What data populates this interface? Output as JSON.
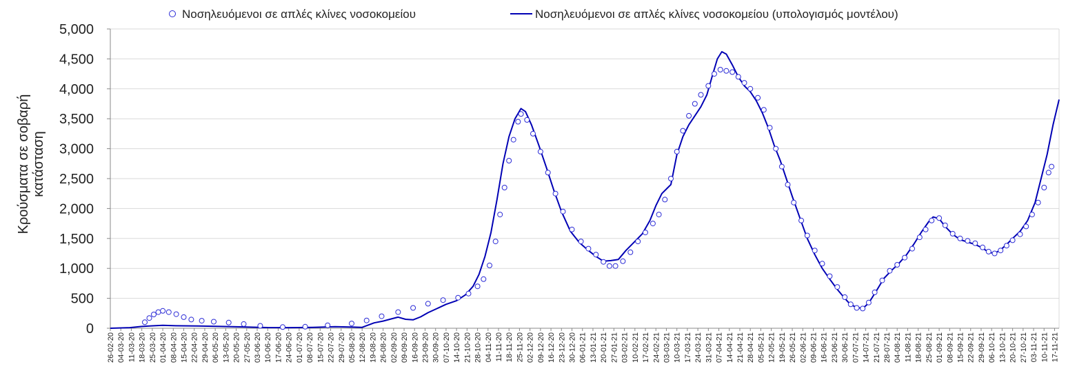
{
  "chart_data": {
    "type": "line",
    "title": "",
    "xlabel": "",
    "ylabel": "Κρούσματα σε σοβαρή κατάσταση",
    "ylabel_lines": [
      "Κρούσματα σε σοβαρή",
      "κατάσταση"
    ],
    "ylim": [
      0,
      5000
    ],
    "yticks": [
      0,
      500,
      1000,
      1500,
      2000,
      2500,
      3000,
      3500,
      4000,
      4500,
      5000
    ],
    "ytick_labels": [
      "0",
      "500",
      "1,000",
      "1,500",
      "2,000",
      "2,500",
      "3,000",
      "3,500",
      "4,000",
      "4,500",
      "5,000"
    ],
    "grid": "horizontal",
    "legend_position": "top",
    "x_range": [
      "26-02-20",
      "20-11-21"
    ],
    "x_tick_labels": [
      "26-02-20",
      "04-03-20",
      "11-03-20",
      "18-03-20",
      "25-03-20",
      "01-04-20",
      "08-04-20",
      "15-04-20",
      "22-04-20",
      "29-04-20",
      "06-05-20",
      "13-05-20",
      "20-05-20",
      "27-05-20",
      "03-06-20",
      "10-06-20",
      "17-06-20",
      "24-06-20",
      "01-07-20",
      "08-07-20",
      "15-07-20",
      "22-07-20",
      "29-07-20",
      "05-08-20",
      "12-08-20",
      "19-08-20",
      "26-08-20",
      "02-09-20",
      "09-09-20",
      "16-09-20",
      "23-09-20",
      "30-09-20",
      "07-10-20",
      "14-10-20",
      "21-10-20",
      "28-10-20",
      "04-11-20",
      "11-11-20",
      "18-11-20",
      "25-11-20",
      "02-12-20",
      "09-12-20",
      "16-12-20",
      "23-12-20",
      "30-12-20",
      "06-01-21",
      "13-01-21",
      "20-01-21",
      "27-01-21",
      "03-02-21",
      "10-02-21",
      "17-02-21",
      "24-02-21",
      "03-03-21",
      "10-03-21",
      "17-03-21",
      "24-03-21",
      "31-03-21",
      "07-04-21",
      "14-04-21",
      "21-04-21",
      "28-04-21",
      "05-05-21",
      "12-05-21",
      "19-05-21",
      "26-05-21",
      "02-06-21",
      "09-06-21",
      "16-06-21",
      "23-06-21",
      "30-06-21",
      "07-07-21",
      "14-07-21",
      "21-07-21",
      "28-07-21",
      "04-08-21",
      "11-08-21",
      "18-08-21",
      "25-08-21",
      "01-09-21",
      "08-09-21",
      "15-09-21",
      "22-09-21",
      "29-09-21",
      "06-10-21",
      "13-10-21",
      "20-10-21",
      "27-10-21",
      "03-11-21",
      "10-11-21",
      "17-11-21"
    ],
    "series": [
      {
        "name": "Νοσηλευόμενοι σε απλές κλίνες νοσοκομείου",
        "style": "markers",
        "color": "#2b2bd6",
        "marker": "open-circle",
        "points": [
          [
            "20-03-20",
            100
          ],
          [
            "23-03-20",
            170
          ],
          [
            "26-03-20",
            230
          ],
          [
            "29-03-20",
            270
          ],
          [
            "01-04-20",
            290
          ],
          [
            "05-04-20",
            270
          ],
          [
            "10-04-20",
            235
          ],
          [
            "15-04-20",
            185
          ],
          [
            "20-04-20",
            145
          ],
          [
            "27-04-20",
            125
          ],
          [
            "05-05-20",
            110
          ],
          [
            "15-05-20",
            95
          ],
          [
            "25-05-20",
            70
          ],
          [
            "05-06-20",
            40
          ],
          [
            "20-06-20",
            20
          ],
          [
            "05-07-20",
            25
          ],
          [
            "20-07-20",
            50
          ],
          [
            "05-08-20",
            80
          ],
          [
            "15-08-20",
            130
          ],
          [
            "25-08-20",
            200
          ],
          [
            "05-09-20",
            270
          ],
          [
            "15-09-20",
            340
          ],
          [
            "25-09-20",
            410
          ],
          [
            "05-10-20",
            470
          ],
          [
            "15-10-20",
            510
          ],
          [
            "22-10-20",
            580
          ],
          [
            "28-10-20",
            700
          ],
          [
            "01-11-20",
            820
          ],
          [
            "05-11-20",
            1050
          ],
          [
            "09-11-20",
            1450
          ],
          [
            "12-11-20",
            1900
          ],
          [
            "15-11-20",
            2350
          ],
          [
            "18-11-20",
            2800
          ],
          [
            "21-11-20",
            3150
          ],
          [
            "24-11-20",
            3450
          ],
          [
            "26-11-20",
            3580
          ],
          [
            "30-11-20",
            3480
          ],
          [
            "04-12-20",
            3250
          ],
          [
            "09-12-20",
            2950
          ],
          [
            "14-12-20",
            2600
          ],
          [
            "19-12-20",
            2250
          ],
          [
            "24-12-20",
            1950
          ],
          [
            "30-12-20",
            1650
          ],
          [
            "05-01-21",
            1450
          ],
          [
            "10-01-21",
            1330
          ],
          [
            "15-01-21",
            1230
          ],
          [
            "20-01-21",
            1110
          ],
          [
            "24-01-21",
            1040
          ],
          [
            "28-01-21",
            1040
          ],
          [
            "02-02-21",
            1120
          ],
          [
            "07-02-21",
            1270
          ],
          [
            "12-02-21",
            1450
          ],
          [
            "17-02-21",
            1600
          ],
          [
            "22-02-21",
            1750
          ],
          [
            "26-02-21",
            1900
          ],
          [
            "02-03-21",
            2150
          ],
          [
            "06-03-21",
            2500
          ],
          [
            "10-03-21",
            2950
          ],
          [
            "14-03-21",
            3300
          ],
          [
            "18-03-21",
            3550
          ],
          [
            "22-03-21",
            3750
          ],
          [
            "26-03-21",
            3900
          ],
          [
            "31-03-21",
            4050
          ],
          [
            "04-04-21",
            4250
          ],
          [
            "08-04-21",
            4320
          ],
          [
            "12-04-21",
            4300
          ],
          [
            "16-04-21",
            4280
          ],
          [
            "20-04-21",
            4200
          ],
          [
            "24-04-21",
            4100
          ],
          [
            "28-04-21",
            4000
          ],
          [
            "03-05-21",
            3850
          ],
          [
            "07-05-21",
            3650
          ],
          [
            "11-05-21",
            3350
          ],
          [
            "15-05-21",
            3000
          ],
          [
            "19-05-21",
            2700
          ],
          [
            "23-05-21",
            2400
          ],
          [
            "27-05-21",
            2100
          ],
          [
            "01-06-21",
            1800
          ],
          [
            "05-06-21",
            1550
          ],
          [
            "10-06-21",
            1300
          ],
          [
            "15-06-21",
            1080
          ],
          [
            "20-06-21",
            870
          ],
          [
            "25-06-21",
            690
          ],
          [
            "30-06-21",
            520
          ],
          [
            "04-07-21",
            400
          ],
          [
            "08-07-21",
            340
          ],
          [
            "12-07-21",
            330
          ],
          [
            "16-07-21",
            430
          ],
          [
            "20-07-21",
            600
          ],
          [
            "25-07-21",
            800
          ],
          [
            "30-07-21",
            960
          ],
          [
            "04-08-21",
            1060
          ],
          [
            "09-08-21",
            1180
          ],
          [
            "14-08-21",
            1330
          ],
          [
            "19-08-21",
            1520
          ],
          [
            "23-08-21",
            1650
          ],
          [
            "27-08-21",
            1800
          ],
          [
            "01-09-21",
            1840
          ],
          [
            "05-09-21",
            1720
          ],
          [
            "10-09-21",
            1580
          ],
          [
            "15-09-21",
            1500
          ],
          [
            "20-09-21",
            1460
          ],
          [
            "25-09-21",
            1420
          ],
          [
            "30-09-21",
            1350
          ],
          [
            "04-10-21",
            1280
          ],
          [
            "08-10-21",
            1250
          ],
          [
            "12-10-21",
            1300
          ],
          [
            "16-10-21",
            1380
          ],
          [
            "20-10-21",
            1470
          ],
          [
            "25-10-21",
            1570
          ],
          [
            "29-10-21",
            1700
          ],
          [
            "02-11-21",
            1900
          ],
          [
            "06-11-21",
            2100
          ],
          [
            "10-11-21",
            2350
          ],
          [
            "13-11-21",
            2600
          ],
          [
            "15-11-21",
            2700
          ]
        ]
      },
      {
        "name": "Νοσηλευόμενοι σε απλές κλίνες νοσοκομείου (υπολογισμός μοντέλου)",
        "style": "line",
        "color": "#0000b4",
        "points": [
          [
            "26-02-20",
            0
          ],
          [
            "10-03-20",
            10
          ],
          [
            "18-03-20",
            30
          ],
          [
            "25-03-20",
            40
          ],
          [
            "01-04-20",
            48
          ],
          [
            "10-04-20",
            42
          ],
          [
            "25-04-20",
            38
          ],
          [
            "10-05-20",
            30
          ],
          [
            "25-05-20",
            22
          ],
          [
            "10-06-20",
            12
          ],
          [
            "25-06-20",
            10
          ],
          [
            "10-07-20",
            15
          ],
          [
            "25-07-20",
            25
          ],
          [
            "05-08-20",
            20
          ],
          [
            "12-08-20",
            15
          ],
          [
            "20-08-20",
            90
          ],
          [
            "26-08-20",
            120
          ],
          [
            "01-09-20",
            160
          ],
          [
            "05-09-20",
            185
          ],
          [
            "10-09-20",
            150
          ],
          [
            "15-09-20",
            140
          ],
          [
            "20-09-20",
            190
          ],
          [
            "25-09-20",
            260
          ],
          [
            "01-10-20",
            330
          ],
          [
            "07-10-20",
            400
          ],
          [
            "14-10-20",
            460
          ],
          [
            "20-10-20",
            560
          ],
          [
            "25-10-20",
            700
          ],
          [
            "29-10-20",
            900
          ],
          [
            "02-11-20",
            1200
          ],
          [
            "06-11-20",
            1600
          ],
          [
            "10-11-20",
            2150
          ],
          [
            "14-11-20",
            2750
          ],
          [
            "18-11-20",
            3200
          ],
          [
            "22-11-20",
            3500
          ],
          [
            "26-11-20",
            3670
          ],
          [
            "29-11-20",
            3620
          ],
          [
            "03-12-20",
            3400
          ],
          [
            "08-12-20",
            3050
          ],
          [
            "13-12-20",
            2680
          ],
          [
            "18-12-20",
            2300
          ],
          [
            "23-12-20",
            1950
          ],
          [
            "29-12-20",
            1620
          ],
          [
            "04-01-21",
            1430
          ],
          [
            "10-01-21",
            1300
          ],
          [
            "15-01-21",
            1200
          ],
          [
            "20-01-21",
            1120
          ],
          [
            "25-01-21",
            1130
          ],
          [
            "30-01-21",
            1150
          ],
          [
            "04-02-21",
            1300
          ],
          [
            "10-02-21",
            1450
          ],
          [
            "15-02-21",
            1580
          ],
          [
            "20-02-21",
            1800
          ],
          [
            "24-02-21",
            2050
          ],
          [
            "28-02-21",
            2250
          ],
          [
            "04-03-21",
            2350
          ],
          [
            "06-03-21",
            2400
          ],
          [
            "10-03-21",
            2900
          ],
          [
            "14-03-21",
            3200
          ],
          [
            "18-03-21",
            3400
          ],
          [
            "22-03-21",
            3550
          ],
          [
            "26-03-21",
            3700
          ],
          [
            "30-03-21",
            3900
          ],
          [
            "03-04-21",
            4250
          ],
          [
            "06-04-21",
            4500
          ],
          [
            "09-04-21",
            4620
          ],
          [
            "12-04-21",
            4580
          ],
          [
            "16-04-21",
            4400
          ],
          [
            "20-04-21",
            4200
          ],
          [
            "24-04-21",
            4050
          ],
          [
            "28-04-21",
            3950
          ],
          [
            "02-05-21",
            3800
          ],
          [
            "06-05-21",
            3600
          ],
          [
            "10-05-21",
            3350
          ],
          [
            "14-05-21",
            3050
          ],
          [
            "18-05-21",
            2800
          ],
          [
            "22-05-21",
            2500
          ],
          [
            "26-05-21",
            2200
          ],
          [
            "31-05-21",
            1850
          ],
          [
            "05-06-21",
            1500
          ],
          [
            "10-06-21",
            1230
          ],
          [
            "15-06-21",
            1000
          ],
          [
            "20-06-21",
            820
          ],
          [
            "25-06-21",
            650
          ],
          [
            "30-06-21",
            500
          ],
          [
            "04-07-21",
            390
          ],
          [
            "08-07-21",
            350
          ],
          [
            "12-07-21",
            330
          ],
          [
            "16-07-21",
            420
          ],
          [
            "21-07-21",
            620
          ],
          [
            "26-07-21",
            830
          ],
          [
            "31-07-21",
            960
          ],
          [
            "05-08-21",
            1080
          ],
          [
            "10-08-21",
            1220
          ],
          [
            "15-08-21",
            1400
          ],
          [
            "20-08-21",
            1600
          ],
          [
            "25-08-21",
            1780
          ],
          [
            "28-08-21",
            1860
          ],
          [
            "01-09-21",
            1830
          ],
          [
            "05-09-21",
            1700
          ],
          [
            "10-09-21",
            1570
          ],
          [
            "15-09-21",
            1480
          ],
          [
            "20-09-21",
            1440
          ],
          [
            "25-09-21",
            1400
          ],
          [
            "30-09-21",
            1340
          ],
          [
            "04-10-21",
            1270
          ],
          [
            "08-10-21",
            1250
          ],
          [
            "12-10-21",
            1310
          ],
          [
            "16-10-21",
            1400
          ],
          [
            "20-10-21",
            1500
          ],
          [
            "25-10-21",
            1620
          ],
          [
            "30-10-21",
            1800
          ],
          [
            "04-11-21",
            2100
          ],
          [
            "08-11-21",
            2500
          ],
          [
            "12-11-21",
            2900
          ],
          [
            "16-11-21",
            3400
          ],
          [
            "20-11-21",
            3820
          ]
        ]
      }
    ]
  }
}
